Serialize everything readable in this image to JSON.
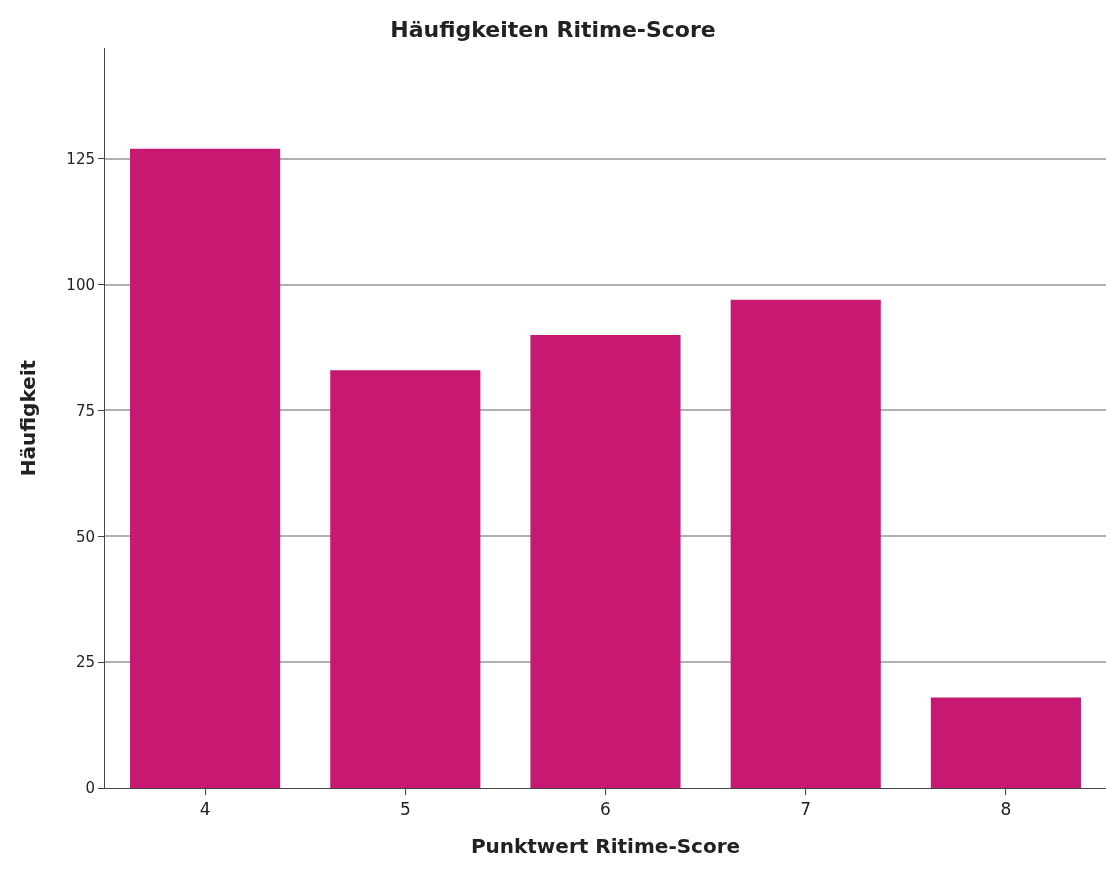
{
  "chart_data": {
    "type": "bar",
    "title": "Häufigkeiten Ritime-Score",
    "xlabel": "Punktwert Ritime-Score",
    "ylabel": "Häufigkeit",
    "categories": [
      "4",
      "5",
      "6",
      "7",
      "8"
    ],
    "values": [
      127,
      83,
      90,
      97,
      18
    ],
    "color": "#c71972",
    "ylim": [
      0,
      147
    ],
    "yticks": [
      0,
      25,
      50,
      75,
      100,
      125
    ],
    "grid": "y"
  }
}
